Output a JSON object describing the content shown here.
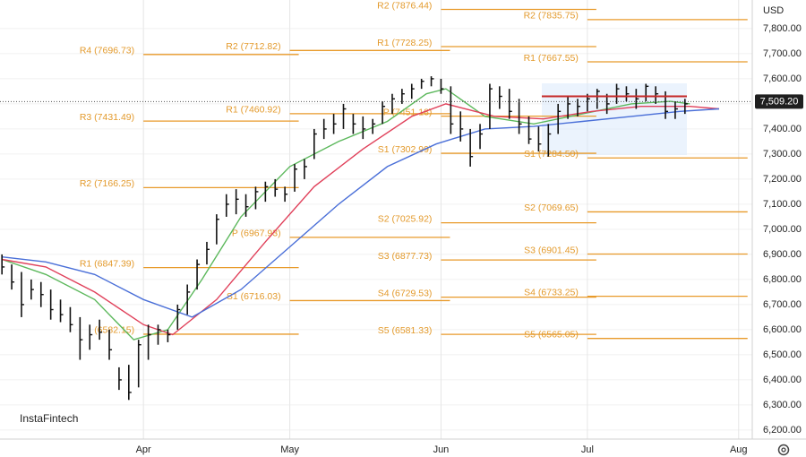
{
  "chart_data": {
    "type": "ohlc",
    "currency": "USD",
    "brand": "InstaFintech",
    "xlim": [
      -29.4,
      124.8
    ],
    "xticks": [
      {
        "value": 0,
        "label": "Apr"
      },
      {
        "value": 30,
        "label": "May"
      },
      {
        "value": 61,
        "label": "Jun"
      },
      {
        "value": 91,
        "label": "Jul"
      },
      {
        "value": 122,
        "label": "Aug"
      }
    ],
    "ylim": [
      6164,
      7914
    ],
    "yticks": [
      {
        "value": 6200,
        "label": "6,200.00"
      },
      {
        "value": 6300,
        "label": "6,300.00"
      },
      {
        "value": 6400,
        "label": "6,400.00"
      },
      {
        "value": 6500,
        "label": "6,500.00"
      },
      {
        "value": 6600,
        "label": "6,600.00"
      },
      {
        "value": 6700,
        "label": "6,700.00"
      },
      {
        "value": 6800,
        "label": "6,800.00"
      },
      {
        "value": 6900,
        "label": "6,900.00"
      },
      {
        "value": 7000,
        "label": "7,000.00"
      },
      {
        "value": 7100,
        "label": "7,100.00"
      },
      {
        "value": 7200,
        "label": "7,200.00"
      },
      {
        "value": 7300,
        "label": "7,300.00"
      },
      {
        "value": 7400,
        "label": "7,400.00"
      },
      {
        "value": 7500,
        "label": "7,500.00"
      },
      {
        "value": 7600,
        "label": "7,600.00"
      },
      {
        "value": 7700,
        "label": "7,700.00"
      },
      {
        "value": 7800,
        "label": "7,800.00"
      }
    ],
    "last_price": {
      "value": 7509.2,
      "label": "7,509.20"
    },
    "poc": 7530,
    "bars": {
      "x": [
        -29,
        -27,
        -25,
        -23,
        -21,
        -19,
        -17,
        -15,
        -13,
        -11,
        -9,
        -7,
        -5,
        -3,
        -1,
        1,
        3,
        5,
        7,
        9,
        11,
        13,
        15,
        17,
        19,
        21,
        23,
        25,
        27,
        29,
        31,
        33,
        35,
        37,
        39,
        41,
        43,
        45,
        47,
        49,
        51,
        53,
        55,
        57,
        59,
        61,
        63,
        65,
        67,
        69,
        71,
        73,
        75,
        77,
        79,
        81,
        83,
        85,
        87,
        89,
        91,
        93,
        95,
        97,
        99,
        101,
        103,
        105,
        107,
        109,
        111
      ],
      "high": [
        6900,
        6860,
        6830,
        6800,
        6790,
        6760,
        6720,
        6690,
        6650,
        6620,
        6640,
        6600,
        6450,
        6460,
        6560,
        6620,
        6620,
        6600,
        6700,
        6780,
        6880,
        6950,
        7060,
        7140,
        7160,
        7140,
        7170,
        7190,
        7200,
        7170,
        7260,
        7280,
        7400,
        7440,
        7460,
        7500,
        7460,
        7450,
        7440,
        7510,
        7540,
        7560,
        7580,
        7600,
        7610,
        7600,
        7570,
        7470,
        7400,
        7420,
        7580,
        7570,
        7560,
        7520,
        7450,
        7410,
        7420,
        7500,
        7530,
        7520,
        7540,
        7560,
        7540,
        7580,
        7570,
        7560,
        7580,
        7570,
        7550,
        7510,
        7520
      ],
      "low": [
        6820,
        6760,
        6650,
        6720,
        6690,
        6640,
        6630,
        6590,
        6480,
        6520,
        6560,
        6480,
        6360,
        6320,
        6370,
        6480,
        6540,
        6550,
        6600,
        6660,
        6760,
        6860,
        6940,
        7050,
        7060,
        7050,
        7080,
        7110,
        7130,
        7110,
        7150,
        7200,
        7280,
        7360,
        7380,
        7400,
        7380,
        7360,
        7380,
        7420,
        7460,
        7500,
        7520,
        7560,
        7570,
        7540,
        7380,
        7350,
        7250,
        7320,
        7400,
        7480,
        7440,
        7380,
        7340,
        7310,
        7290,
        7380,
        7440,
        7450,
        7470,
        7480,
        7460,
        7500,
        7510,
        7480,
        7510,
        7500,
        7440,
        7440,
        7460
      ],
      "close": [
        6850,
        6790,
        6700,
        6760,
        6740,
        6680,
        6660,
        6620,
        6560,
        6580,
        6590,
        6520,
        6400,
        6350,
        6540,
        6580,
        6600,
        6580,
        6680,
        6750,
        6860,
        6920,
        7040,
        7100,
        7120,
        7090,
        7150,
        7170,
        7160,
        7140,
        7240,
        7250,
        7380,
        7400,
        7420,
        7480,
        7420,
        7400,
        7420,
        7490,
        7520,
        7540,
        7560,
        7590,
        7600,
        7560,
        7420,
        7400,
        7290,
        7380,
        7560,
        7530,
        7470,
        7420,
        7360,
        7340,
        7380,
        7470,
        7500,
        7490,
        7520,
        7550,
        7500,
        7560,
        7540,
        7520,
        7570,
        7540,
        7470,
        7480,
        7500
      ]
    },
    "ma": [
      {
        "color": "#5cb85c",
        "x": [
          -29,
          -20,
          -10,
          -2,
          5,
          12,
          20,
          30,
          40,
          50,
          58,
          62,
          70,
          80,
          90,
          100,
          108,
          112
        ],
        "values": [
          6880,
          6820,
          6720,
          6560,
          6600,
          6800,
          7050,
          7250,
          7350,
          7430,
          7540,
          7560,
          7450,
          7420,
          7460,
          7500,
          7510,
          7500
        ]
      },
      {
        "color": "#e0405a",
        "x": [
          -29,
          -20,
          -10,
          0,
          6,
          15,
          25,
          35,
          45,
          55,
          62,
          72,
          82,
          92,
          102,
          112,
          118
        ],
        "values": [
          6880,
          6850,
          6750,
          6620,
          6580,
          6720,
          6950,
          7170,
          7320,
          7450,
          7500,
          7450,
          7440,
          7470,
          7490,
          7490,
          7480
        ]
      },
      {
        "color": "#4a6fd8",
        "x": [
          -29,
          -20,
          -10,
          0,
          10,
          20,
          30,
          40,
          50,
          60,
          70,
          80,
          90,
          100,
          110,
          118
        ],
        "values": [
          6890,
          6870,
          6820,
          6720,
          6650,
          6760,
          6930,
          7100,
          7250,
          7340,
          7400,
          7410,
          7430,
          7450,
          7470,
          7480
        ]
      }
    ],
    "pivot_groups": [
      {
        "levels": [
          {
            "label": "R4 (7696.73)",
            "value": 7696.73
          },
          {
            "label": "R3 (7431.49)",
            "value": 7431.49
          },
          {
            "label": "R2 (7166.25)",
            "value": 7166.25
          },
          {
            "label": "R1 (6847.39)",
            "value": 6847.39
          },
          {
            "label": "(6582.15)",
            "value": 6582.15
          }
        ]
      },
      {
        "levels": [
          {
            "label": "R2 (7712.82)",
            "value": 7712.82
          },
          {
            "label": "R1 (7460.92)",
            "value": 7460.92
          },
          {
            "label": "P (6967.93)",
            "value": 6967.93
          },
          {
            "label": "S1 (6716.03)",
            "value": 6716.03
          }
        ]
      },
      {
        "levels": [
          {
            "label": "R2 (7876.44)",
            "value": 7876.44
          },
          {
            "label": "R1 (7728.25)",
            "value": 7728.25
          },
          {
            "label": "P (7451.18)",
            "value": 7451.18
          },
          {
            "label": "S1 (7302.99)",
            "value": 7302.99
          },
          {
            "label": "S2 (7025.92)",
            "value": 7025.92
          },
          {
            "label": "S3 (6877.73)",
            "value": 6877.73
          },
          {
            "label": "S4 (6729.53)",
            "value": 6729.53
          },
          {
            "label": "S5 (6581.33)",
            "value": 6581.33
          }
        ]
      },
      {
        "levels": [
          {
            "label": "R2 (7835.75)",
            "value": 7835.75
          },
          {
            "label": "R1 (7667.55)",
            "value": 7667.55
          },
          {
            "label": "S1 (7284.50)",
            "value": 7284.5
          },
          {
            "label": "S2 (7069.65)",
            "value": 7069.65
          },
          {
            "label": "S3 (6901.45)",
            "value": 6901.45
          },
          {
            "label": "S4 (6733.25)",
            "value": 6733.25
          },
          {
            "label": "S5 (6565.05)",
            "value": 6565.05
          }
        ]
      }
    ]
  }
}
